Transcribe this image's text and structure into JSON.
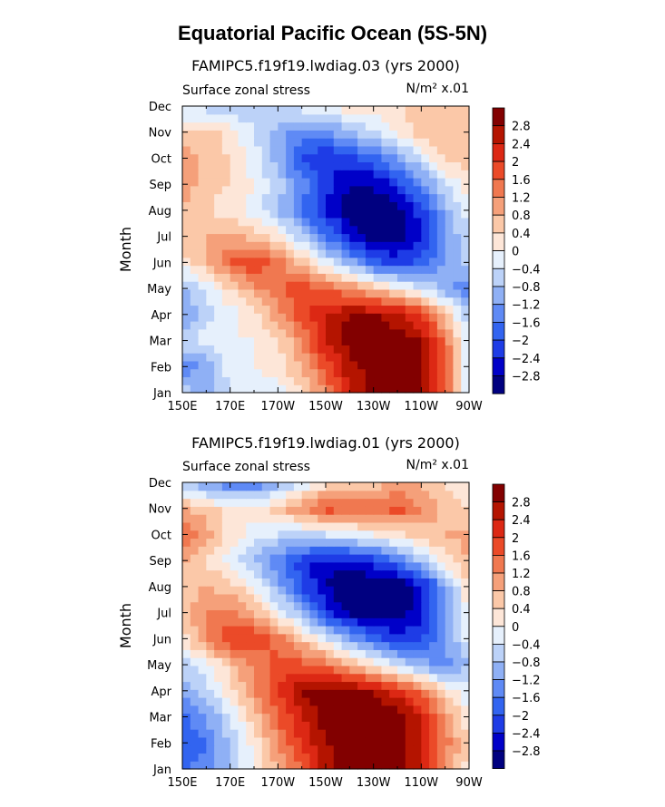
{
  "page_title": "Equatorial Pacific Ocean (5S-5N)",
  "colors": {
    "levels": [
      "#000080",
      "#0000c8",
      "#1e3ce6",
      "#3264f0",
      "#5f8af5",
      "#8fb0f5",
      "#bcd2f8",
      "#e6f0fc",
      "#fde6d8",
      "#fbc8a8",
      "#f5a07a",
      "#f07850",
      "#eb4a28",
      "#dc2814",
      "#b41400",
      "#820000"
    ]
  },
  "chart_data": [
    {
      "type": "heatmap",
      "title": "FAMIPC5.f19f19.lwdiag.03 (yrs 2000)",
      "left_label": "Surface zonal stress",
      "units": "N/m² x.01",
      "ylabel": "Month",
      "x_tick_labels": [
        "150E",
        "170E",
        "170W",
        "150W",
        "130W",
        "110W",
        "90W"
      ],
      "y_tick_labels": [
        "Jan",
        "Feb",
        "Mar",
        "Apr",
        "May",
        "Jun",
        "Jul",
        "Aug",
        "Sep",
        "Oct",
        "Nov",
        "Dec"
      ],
      "colorbar_labels": [
        "2.8",
        "2.4",
        "2",
        "1.6",
        "1.2",
        "0.8",
        "0.4",
        "0",
        "−0.4",
        "−0.8",
        "−1.2",
        "−1.6",
        "−2",
        "−2.4",
        "−2.8"
      ],
      "x_lon": [
        150,
        160,
        170,
        180,
        190,
        200,
        210,
        220,
        230,
        240,
        250,
        260,
        270
      ],
      "values": [
        [
          -0.6,
          -1.0,
          -0.4,
          -0.2,
          -0.2,
          0.4,
          1.2,
          2.4,
          3.0,
          3.0,
          3.0,
          1.6,
          -0.6
        ],
        [
          -1.4,
          -1.2,
          -0.2,
          0.0,
          0.2,
          0.8,
          1.8,
          2.6,
          3.0,
          3.0,
          3.0,
          1.8,
          -0.4
        ],
        [
          -0.6,
          -0.2,
          0.0,
          0.0,
          0.4,
          1.2,
          2.4,
          3.0,
          3.2,
          3.0,
          2.8,
          1.4,
          -0.4
        ],
        [
          -1.2,
          -0.6,
          -0.2,
          0.2,
          1.0,
          1.8,
          2.4,
          2.8,
          2.8,
          2.6,
          2.0,
          0.6,
          -0.8
        ],
        [
          -1.0,
          -0.4,
          0.4,
          1.0,
          1.6,
          1.8,
          1.6,
          1.2,
          0.6,
          0.2,
          -0.4,
          -1.0,
          -1.6
        ],
        [
          0.2,
          0.8,
          1.6,
          2.0,
          1.4,
          0.6,
          -0.2,
          -1.0,
          -1.8,
          -2.2,
          -1.8,
          -1.2,
          -0.6
        ],
        [
          0.6,
          0.8,
          1.0,
          0.6,
          0.2,
          -0.6,
          -1.6,
          -2.4,
          -3.0,
          -3.0,
          -2.4,
          -1.2,
          -0.4
        ],
        [
          0.8,
          0.4,
          0.2,
          -0.2,
          -0.8,
          -1.6,
          -2.4,
          -3.0,
          -3.2,
          -3.0,
          -2.2,
          -1.0,
          -0.2
        ],
        [
          1.0,
          0.6,
          0.4,
          0.0,
          -0.6,
          -1.4,
          -2.2,
          -2.8,
          -2.8,
          -2.2,
          -1.4,
          -0.4,
          0.2
        ],
        [
          1.2,
          0.6,
          0.4,
          -0.2,
          -1.0,
          -2.0,
          -2.4,
          -2.2,
          -1.8,
          -1.2,
          -0.4,
          0.4,
          0.8
        ],
        [
          0.4,
          0.6,
          0.2,
          -0.4,
          -1.0,
          -1.4,
          -1.4,
          -0.8,
          -0.4,
          0.0,
          0.6,
          0.8,
          0.8
        ],
        [
          -0.4,
          -0.6,
          -0.8,
          -0.6,
          -0.4,
          -0.2,
          0.0,
          0.2,
          0.2,
          0.4,
          0.6,
          0.8,
          0.6
        ]
      ]
    },
    {
      "type": "heatmap",
      "title": "FAMIPC5.f19f19.lwdiag.01 (yrs 2000)",
      "left_label": "Surface zonal stress",
      "units": "N/m² x.01",
      "ylabel": "Month",
      "x_tick_labels": [
        "150E",
        "170E",
        "170W",
        "150W",
        "130W",
        "110W",
        "90W"
      ],
      "y_tick_labels": [
        "Jan",
        "Feb",
        "Mar",
        "Apr",
        "May",
        "Jun",
        "Jul",
        "Aug",
        "Sep",
        "Oct",
        "Nov",
        "Dec"
      ],
      "colorbar_labels": [
        "2.8",
        "2.4",
        "2",
        "1.6",
        "1.2",
        "0.8",
        "0.4",
        "0",
        "−0.4",
        "−0.8",
        "−1.2",
        "−1.6",
        "−2",
        "−2.4",
        "−2.8"
      ],
      "x_lon": [
        150,
        160,
        170,
        180,
        190,
        200,
        210,
        220,
        230,
        240,
        250,
        260,
        270
      ],
      "values": [
        [
          -1.6,
          -1.4,
          -0.8,
          0.0,
          0.8,
          1.6,
          2.6,
          3.0,
          3.0,
          3.0,
          2.4,
          1.2,
          0.2
        ],
        [
          -2.0,
          -1.6,
          -0.8,
          0.2,
          1.2,
          2.0,
          2.8,
          3.0,
          3.2,
          3.0,
          2.6,
          1.4,
          0.4
        ],
        [
          -1.8,
          -1.2,
          -0.4,
          0.6,
          1.6,
          2.4,
          3.0,
          3.2,
          3.2,
          3.0,
          2.4,
          1.2,
          0.0
        ],
        [
          -1.0,
          -0.6,
          0.2,
          1.2,
          2.0,
          2.8,
          3.0,
          3.0,
          2.8,
          2.2,
          1.4,
          0.4,
          -0.4
        ],
        [
          -0.6,
          -0.2,
          0.6,
          1.2,
          1.8,
          1.8,
          1.4,
          0.8,
          0.2,
          -0.4,
          -1.0,
          -1.4,
          -0.8
        ],
        [
          0.2,
          1.2,
          2.0,
          2.0,
          1.4,
          0.6,
          -0.2,
          -1.0,
          -1.8,
          -2.2,
          -2.0,
          -1.2,
          -0.2
        ],
        [
          0.6,
          1.2,
          1.4,
          0.8,
          0.0,
          -1.0,
          -2.2,
          -3.0,
          -3.2,
          -3.0,
          -2.6,
          -1.4,
          0.2
        ],
        [
          0.6,
          0.8,
          0.6,
          0.0,
          -1.0,
          -2.0,
          -2.8,
          -3.2,
          -3.2,
          -3.2,
          -2.6,
          -1.2,
          0.4
        ],
        [
          0.8,
          0.4,
          -0.2,
          -0.8,
          -1.6,
          -2.2,
          -2.6,
          -2.6,
          -2.2,
          -1.6,
          -0.8,
          0.2,
          0.8
        ],
        [
          1.6,
          1.0,
          0.2,
          -0.2,
          -0.4,
          -0.6,
          -0.4,
          -0.2,
          0.0,
          0.2,
          0.6,
          0.8,
          1.0
        ],
        [
          0.8,
          0.6,
          0.2,
          0.2,
          0.6,
          1.2,
          1.8,
          1.6,
          1.4,
          1.8,
          1.2,
          0.6,
          0.4
        ],
        [
          -0.6,
          -1.2,
          -1.6,
          -1.6,
          -1.0,
          -0.4,
          0.2,
          0.4,
          0.6,
          0.8,
          0.8,
          0.4,
          0.2
        ]
      ]
    }
  ]
}
